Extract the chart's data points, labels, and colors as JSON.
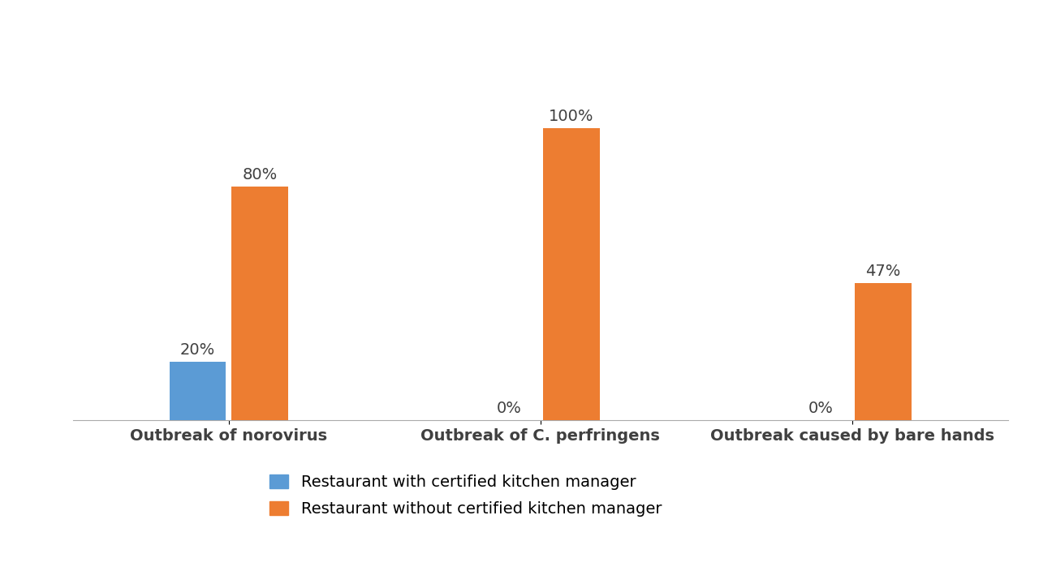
{
  "categories": [
    "Outbreak of norovirus",
    "Outbreak of C. perfringens",
    "Outbreak caused by bare hands"
  ],
  "certified": [
    20,
    0,
    0
  ],
  "without_certified": [
    80,
    100,
    47
  ],
  "certified_color": "#5B9BD5",
  "without_color": "#ED7D31",
  "certified_label": "Restaurant with certified kitchen manager",
  "without_label": "Restaurant without certified kitchen manager",
  "bar_width": 0.18,
  "ylim": [
    0,
    120
  ],
  "label_fontsize": 14,
  "tick_fontsize": 14,
  "legend_fontsize": 14,
  "background_color": "#ffffff"
}
